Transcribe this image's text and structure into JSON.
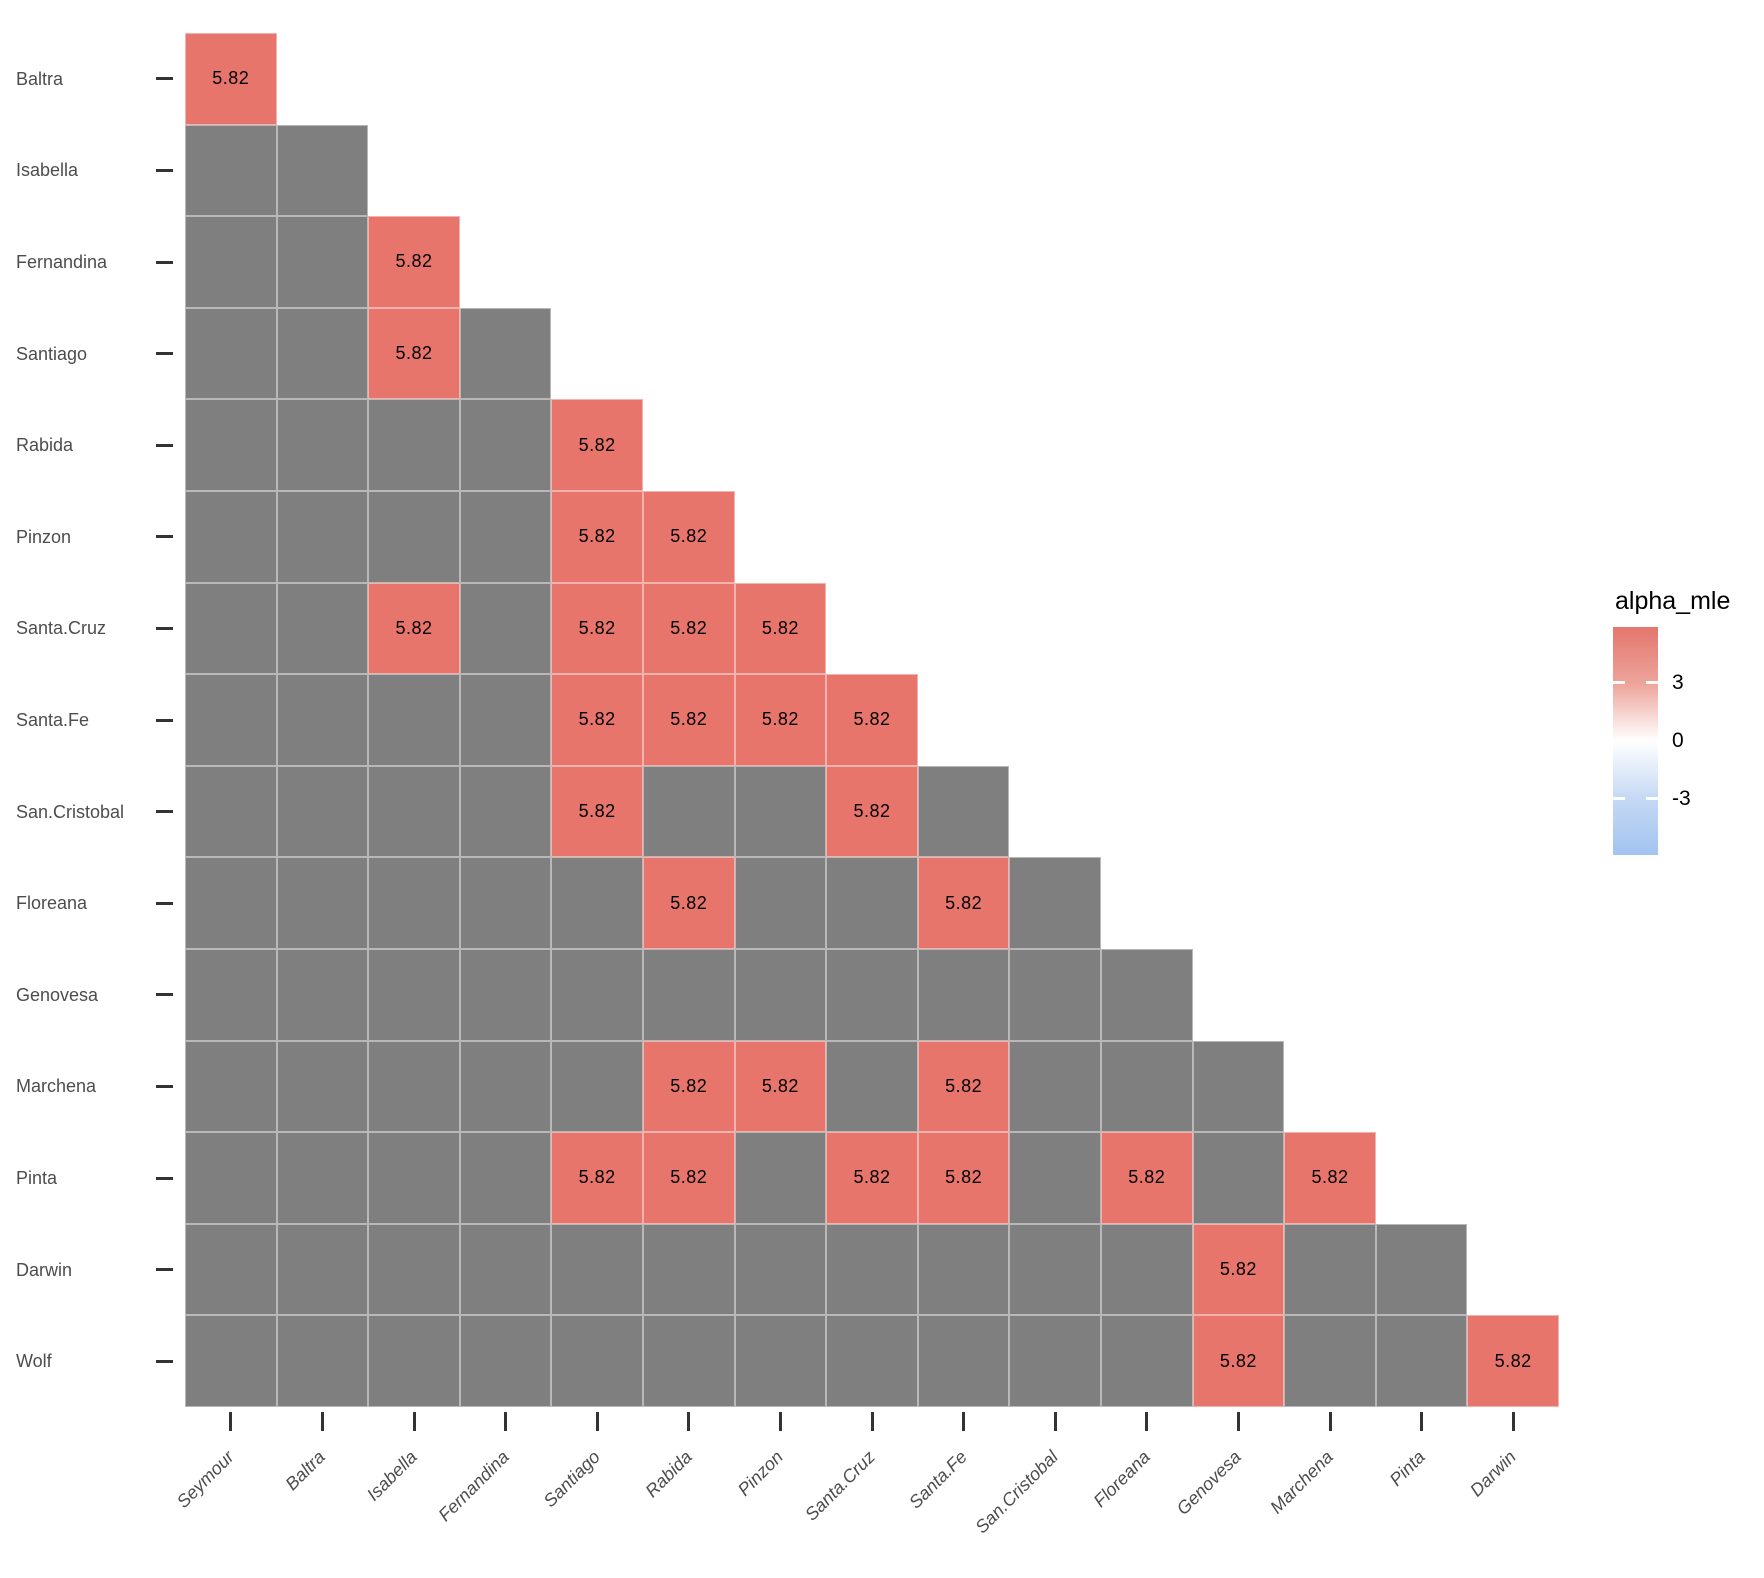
{
  "chart_data": {
    "type": "heatmap",
    "title": "",
    "x_categories": [
      "Seymour",
      "Baltra",
      "Isabella",
      "Fernandina",
      "Santiago",
      "Rabida",
      "Pinzon",
      "Santa.Cruz",
      "Santa.Fe",
      "San.Cristobal",
      "Floreana",
      "Genovesa",
      "Marchena",
      "Pinta",
      "Darwin"
    ],
    "y_categories": [
      "Baltra",
      "Isabella",
      "Fernandina",
      "Santiago",
      "Rabida",
      "Pinzon",
      "Santa.Cruz",
      "Santa.Fe",
      "San.Cristobal",
      "Floreana",
      "Genovesa",
      "Marchena",
      "Pinta",
      "Darwin",
      "Wolf"
    ],
    "shape": "lower-triangle",
    "cell_value": 5.82,
    "cell_value_label": "5.82",
    "na_color": "#7F7F7F",
    "value_color": "#E8756C",
    "grid": false,
    "rows": [
      {
        "name": "Baltra",
        "values": [
          5.82
        ]
      },
      {
        "name": "Isabella",
        "values": [
          null,
          null
        ]
      },
      {
        "name": "Fernandina",
        "values": [
          null,
          null,
          5.82
        ]
      },
      {
        "name": "Santiago",
        "values": [
          null,
          null,
          5.82,
          null
        ]
      },
      {
        "name": "Rabida",
        "values": [
          null,
          null,
          null,
          null,
          5.82
        ]
      },
      {
        "name": "Pinzon",
        "values": [
          null,
          null,
          null,
          null,
          5.82,
          5.82
        ]
      },
      {
        "name": "Santa.Cruz",
        "values": [
          null,
          null,
          5.82,
          null,
          5.82,
          5.82,
          5.82
        ]
      },
      {
        "name": "Santa.Fe",
        "values": [
          null,
          null,
          null,
          null,
          5.82,
          5.82,
          5.82,
          5.82
        ]
      },
      {
        "name": "San.Cristobal",
        "values": [
          null,
          null,
          null,
          null,
          5.82,
          null,
          null,
          5.82,
          null
        ]
      },
      {
        "name": "Floreana",
        "values": [
          null,
          null,
          null,
          null,
          null,
          5.82,
          null,
          null,
          5.82,
          null
        ]
      },
      {
        "name": "Genovesa",
        "values": [
          null,
          null,
          null,
          null,
          null,
          null,
          null,
          null,
          null,
          null,
          null
        ]
      },
      {
        "name": "Marchena",
        "values": [
          null,
          null,
          null,
          null,
          null,
          5.82,
          5.82,
          null,
          5.82,
          null,
          null,
          null
        ]
      },
      {
        "name": "Pinta",
        "values": [
          null,
          null,
          null,
          null,
          5.82,
          5.82,
          null,
          5.82,
          5.82,
          null,
          5.82,
          null,
          5.82
        ]
      },
      {
        "name": "Darwin",
        "values": [
          null,
          null,
          null,
          null,
          null,
          null,
          null,
          null,
          null,
          null,
          null,
          5.82,
          null,
          null
        ]
      },
      {
        "name": "Wolf",
        "values": [
          null,
          null,
          null,
          null,
          null,
          null,
          null,
          null,
          null,
          null,
          null,
          5.82,
          null,
          null,
          5.82
        ]
      }
    ],
    "legend": {
      "title": "alpha_mle",
      "tick_labels": [
        "3",
        "0",
        "-3"
      ],
      "tick_values": [
        3,
        0,
        -3
      ],
      "range": [
        -5.82,
        5.82
      ],
      "position": "right",
      "high_color": "#E4766D",
      "mid_color": "#FFFFFF",
      "low_color": "#A3C3F1"
    }
  }
}
